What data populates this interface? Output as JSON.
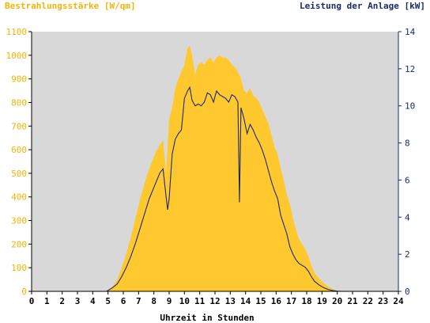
{
  "chart_data": {
    "type": "area",
    "title": "",
    "left_axis_title": "Bestrahlungsstärke [W/qm]",
    "right_axis_title": "Leistung der Anlage [kW]",
    "xlabel": "Uhrzeit in Stunden",
    "xlim": [
      0,
      24
    ],
    "ylim_left": [
      0,
      1100
    ],
    "ylim_right": [
      0,
      14
    ],
    "x_ticks": [
      "0",
      "1",
      "2",
      "3",
      "4",
      "5",
      "6",
      "7",
      "8",
      "9",
      "10",
      "11",
      "12",
      "13",
      "14",
      "15",
      "16",
      "17",
      "18",
      "19",
      "20",
      "21",
      "22",
      "23",
      "24"
    ],
    "y_ticks_left": [
      "0",
      "100",
      "200",
      "300",
      "400",
      "500",
      "600",
      "700",
      "800",
      "900",
      "1000",
      "1100"
    ],
    "y_ticks_right": [
      "0",
      "2",
      "4",
      "6",
      "8",
      "10",
      "12",
      "14"
    ],
    "grid": false,
    "colors": {
      "background": "#d8d8d8",
      "irradiance_fill": "#ffc82e",
      "left_axis_text": "#f5b400",
      "power_line": "#1b2a6b",
      "right_axis_text": "#1b2a6b"
    },
    "series": [
      {
        "name": "Bestrahlungsstärke",
        "axis": "left",
        "kind": "area",
        "x": [
          0,
          4.8,
          5.0,
          5.3,
          5.6,
          5.9,
          6.2,
          6.5,
          6.8,
          7.1,
          7.4,
          7.7,
          8.0,
          8.2,
          8.4,
          8.6,
          8.8,
          9.0,
          9.2,
          9.4,
          9.6,
          9.8,
          10.0,
          10.2,
          10.35,
          10.5,
          10.7,
          10.9,
          11.1,
          11.3,
          11.5,
          11.7,
          11.9,
          12.1,
          12.3,
          12.5,
          12.7,
          12.9,
          13.1,
          13.3,
          13.5,
          13.7,
          13.9,
          14.1,
          14.3,
          14.5,
          14.7,
          14.9,
          15.1,
          15.3,
          15.5,
          15.7,
          15.9,
          16.1,
          16.3,
          16.5,
          16.7,
          16.9,
          17.1,
          17.3,
          17.5,
          17.7,
          17.9,
          18.1,
          18.3,
          18.5,
          18.8,
          19.1,
          19.4,
          19.7,
          20.0,
          20.3,
          24
        ],
        "values": [
          0,
          0,
          5,
          20,
          50,
          100,
          160,
          230,
          310,
          390,
          460,
          520,
          570,
          600,
          620,
          640,
          500,
          730,
          780,
          860,
          900,
          930,
          960,
          1030,
          1040,
          1000,
          920,
          960,
          970,
          960,
          980,
          990,
          970,
          990,
          1000,
          990,
          990,
          980,
          960,
          950,
          930,
          900,
          850,
          840,
          860,
          830,
          820,
          800,
          770,
          740,
          710,
          660,
          610,
          580,
          520,
          470,
          410,
          370,
          310,
          260,
          220,
          200,
          180,
          150,
          110,
          80,
          55,
          35,
          20,
          10,
          3,
          0,
          0
        ]
      },
      {
        "name": "Leistung der Anlage",
        "axis": "right",
        "kind": "line",
        "x": [
          0,
          4.9,
          5.0,
          5.3,
          5.6,
          5.9,
          6.2,
          6.5,
          6.8,
          7.1,
          7.4,
          7.7,
          8.0,
          8.2,
          8.4,
          8.6,
          8.8,
          8.9,
          9.0,
          9.2,
          9.4,
          9.6,
          9.8,
          10.0,
          10.2,
          10.35,
          10.5,
          10.7,
          10.9,
          11.1,
          11.3,
          11.5,
          11.7,
          11.9,
          12.1,
          12.3,
          12.5,
          12.7,
          12.9,
          13.1,
          13.3,
          13.5,
          13.6,
          13.7,
          13.9,
          14.1,
          14.3,
          14.5,
          14.7,
          14.9,
          15.1,
          15.3,
          15.5,
          15.7,
          15.9,
          16.1,
          16.3,
          16.5,
          16.7,
          16.9,
          17.1,
          17.3,
          17.5,
          17.7,
          17.9,
          18.1,
          18.3,
          18.5,
          18.8,
          19.1,
          19.4,
          19.7,
          20.0,
          20.3,
          24
        ],
        "values": [
          0,
          0,
          0.05,
          0.2,
          0.4,
          0.8,
          1.3,
          1.9,
          2.6,
          3.4,
          4.2,
          5.0,
          5.6,
          6.0,
          6.4,
          6.6,
          5.1,
          4.4,
          5.0,
          7.4,
          8.2,
          8.5,
          8.7,
          10.4,
          10.8,
          11.0,
          10.3,
          10.0,
          10.1,
          10.0,
          10.2,
          10.7,
          10.6,
          10.2,
          10.8,
          10.6,
          10.5,
          10.4,
          10.2,
          10.6,
          10.5,
          10.2,
          4.8,
          9.9,
          9.3,
          8.5,
          9.0,
          8.7,
          8.3,
          8.0,
          7.6,
          7.1,
          6.5,
          5.9,
          5.4,
          5.0,
          4.1,
          3.6,
          3.1,
          2.4,
          2.0,
          1.7,
          1.5,
          1.4,
          1.3,
          1.1,
          0.8,
          0.55,
          0.35,
          0.2,
          0.1,
          0.04,
          0.01,
          0,
          0
        ]
      }
    ]
  }
}
